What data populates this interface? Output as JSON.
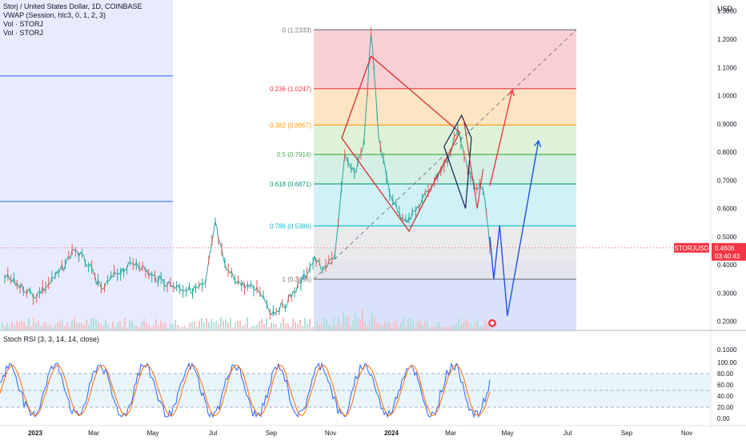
{
  "header": {
    "symbol_line": "Storj / United States Dollar, 1D, COINBASE",
    "indicators": [
      "VWAP (Session, hlc3, 0, 1, 2, 3)",
      "Vol · STORJ",
      "Vol · STORJ"
    ]
  },
  "price_axis": {
    "currency": "USD",
    "ticks": [
      "1.3000",
      "1.2000",
      "1.1000",
      "1.0000",
      "0.9000",
      "0.8000",
      "0.7000",
      "0.6000",
      "0.5000",
      "0.4000",
      "0.3000",
      "0.2000",
      "0.1000"
    ]
  },
  "price_tag": {
    "symbol": "STORJUSD",
    "price": "0.4606",
    "countdown": "03:40:43",
    "color": "#f23645"
  },
  "time_axis": {
    "labels": [
      "2023",
      "Mar",
      "May",
      "Jul",
      "Sep",
      "Nov",
      "2024",
      "Mar",
      "May",
      "Jul",
      "Sep",
      "Nov"
    ]
  },
  "fib": {
    "levels": [
      {
        "ratio": 0,
        "price": 1.2333,
        "label": "0 (1.2333)",
        "color": "#787b86"
      },
      {
        "ratio": 0.236,
        "price": 1.0247,
        "label": "0.236 (1.0247)",
        "color": "#f23645"
      },
      {
        "ratio": 0.382,
        "price": 0.8957,
        "label": "0.382 (0.8957)",
        "color": "#ff9800"
      },
      {
        "ratio": 0.5,
        "price": 0.7914,
        "label": "0.5 (0.7914)",
        "color": "#4caf50"
      },
      {
        "ratio": 0.618,
        "price": 0.6871,
        "label": "0.618 (0.6871)",
        "color": "#089981"
      },
      {
        "ratio": 0.786,
        "price": 0.5386,
        "label": "0.786 (0.5386)",
        "color": "#00bcd4"
      },
      {
        "ratio": 1,
        "price": 0.3495,
        "label": "1 (0.3495)",
        "color": "#787b86"
      }
    ]
  },
  "rsi": {
    "title": "Stoch RSI (3, 3, 14, 14, close)",
    "ticks": [
      "100.00",
      "80.00",
      "60.00",
      "40.00",
      "20.00",
      "0.00"
    ]
  },
  "chart_data": {
    "type": "line",
    "title": "Storj / United States Dollar, 1D, COINBASE",
    "x_labels": [
      "2023",
      "Mar",
      "May",
      "Jul",
      "Sep",
      "Nov",
      "2024",
      "Mar",
      "May",
      "Jul",
      "Sep",
      "Nov"
    ],
    "ylim": [
      0.1,
      1.3
    ],
    "price_series": {
      "name": "STORJUSD",
      "points": [
        [
          "2022-12-01",
          0.36
        ],
        [
          "2022-12-15",
          0.33
        ],
        [
          "2023-01-01",
          0.29
        ],
        [
          "2023-01-15",
          0.33
        ],
        [
          "2023-02-01",
          0.4
        ],
        [
          "2023-02-10",
          0.46
        ],
        [
          "2023-02-25",
          0.4
        ],
        [
          "2023-03-10",
          0.31
        ],
        [
          "2023-03-25",
          0.37
        ],
        [
          "2023-04-15",
          0.41
        ],
        [
          "2023-05-01",
          0.36
        ],
        [
          "2023-05-20",
          0.33
        ],
        [
          "2023-06-10",
          0.31
        ],
        [
          "2023-06-25",
          0.33
        ],
        [
          "2023-07-05",
          0.55
        ],
        [
          "2023-07-15",
          0.39
        ],
        [
          "2023-08-01",
          0.33
        ],
        [
          "2023-08-20",
          0.31
        ],
        [
          "2023-09-01",
          0.23
        ],
        [
          "2023-09-15",
          0.26
        ],
        [
          "2023-10-01",
          0.34
        ],
        [
          "2023-10-15",
          0.42
        ],
        [
          "2023-10-25",
          0.38
        ],
        [
          "2023-11-05",
          0.44
        ],
        [
          "2023-11-15",
          0.78
        ],
        [
          "2023-11-25",
          0.72
        ],
        [
          "2023-12-05",
          0.84
        ],
        [
          "2023-12-12",
          1.23
        ],
        [
          "2023-12-20",
          0.85
        ],
        [
          "2023-12-31",
          0.66
        ],
        [
          "2024-01-10",
          0.58
        ],
        [
          "2024-01-20",
          0.56
        ],
        [
          "2024-02-01",
          0.62
        ],
        [
          "2024-02-15",
          0.7
        ],
        [
          "2024-03-01",
          0.78
        ],
        [
          "2024-03-10",
          0.89
        ],
        [
          "2024-03-20",
          0.74
        ],
        [
          "2024-03-28",
          0.68
        ],
        [
          "2024-04-05",
          0.68
        ],
        [
          "2024-04-12",
          0.4606
        ]
      ]
    },
    "projections": [
      {
        "color": "#1e53e5",
        "points": [
          [
            "2024-04-12",
            0.5
          ],
          [
            "2024-04-16",
            0.35
          ],
          [
            "2024-04-22",
            0.54
          ],
          [
            "2024-04-30",
            0.22
          ],
          [
            "2024-06-01",
            0.84
          ]
        ]
      },
      {
        "color": "#f23645",
        "points": [
          [
            "2024-04-12",
            0.68
          ],
          [
            "2024-05-05",
            1.02
          ]
        ]
      }
    ],
    "stoch_rsi": {
      "name": "Stoch RSI (3, 3, 14, 14, close)",
      "ylim": [
        0,
        100
      ],
      "bands": [
        20,
        80
      ]
    }
  }
}
